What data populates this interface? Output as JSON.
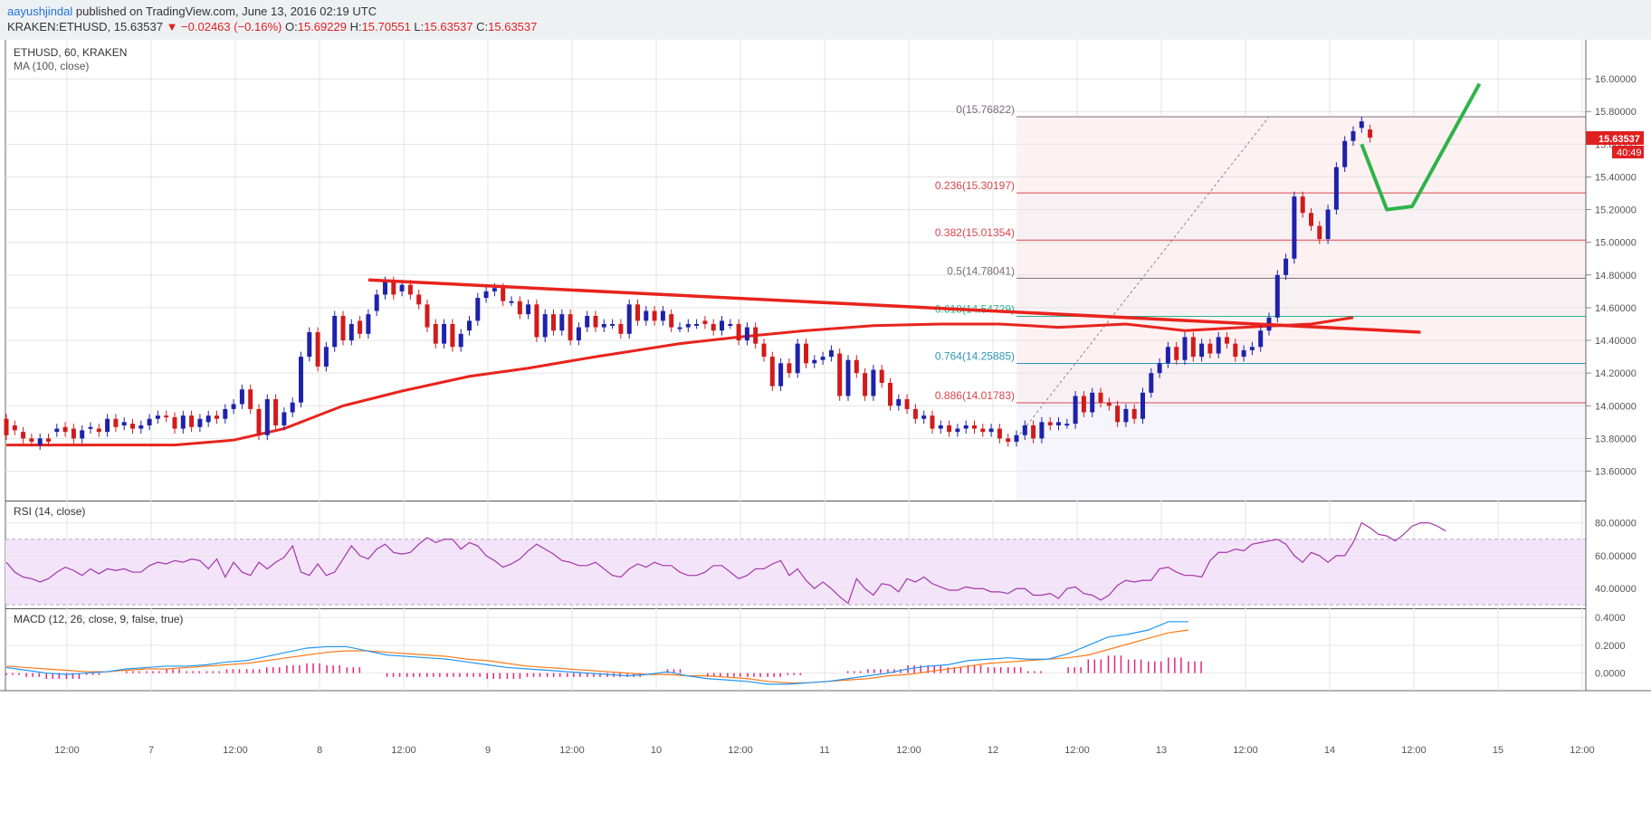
{
  "header": {
    "user": "aayushjindal",
    "published": " published on TradingView.com, June 13, 2016 02:19 UTC",
    "symbol": "KRAKEN:ETHUSD, 15.63537 ",
    "change": "▼ −0.02463 (−0.16%)",
    "o_label": " O:",
    "o_val": "15.69229",
    "h_label": " H:",
    "h_val": "15.70551",
    "l_label": " L:",
    "l_val": "15.63537",
    "c_label": " C:",
    "c_val": "15.63537"
  },
  "colors": {
    "up": "#1e22aa",
    "down": "#d21b1b",
    "ma": "#e8231d",
    "trend": "#e8231d",
    "forecast": "#2db34a",
    "rsi": "#a335a8",
    "rsi_band": "#f3e4fa",
    "macd": "#2196f3",
    "signal": "#ff7a1a",
    "hist": "#e2257a"
  },
  "chart_data": [
    {
      "type": "candlestick",
      "title": "ETHUSD, 60, KRAKEN",
      "indicator": "MA (100, close)",
      "ylim": [
        13.42,
        16.2
      ],
      "yticks": [
        13.6,
        13.8,
        14.0,
        14.2,
        14.4,
        14.6,
        14.8,
        15.0,
        15.2,
        15.4,
        15.6,
        15.8,
        16.0
      ],
      "xlabels": [
        "12:00",
        "7",
        "12:00",
        "8",
        "12:00",
        "9",
        "12:00",
        "10",
        "12:00",
        "11",
        "12:00",
        "12",
        "12:00",
        "13",
        "12:00",
        "14",
        "12:00",
        "15",
        "12:00"
      ],
      "last_price": "15.63537",
      "countdown": "40:49",
      "candles": [
        [
          13.92,
          13.82
        ],
        [
          13.88,
          13.85
        ],
        [
          13.84,
          13.8
        ],
        [
          13.8,
          13.78
        ],
        [
          13.76,
          13.8
        ],
        [
          13.8,
          13.78
        ],
        [
          13.84,
          13.86
        ],
        [
          13.87,
          13.84
        ],
        [
          13.86,
          13.8
        ],
        [
          13.8,
          13.85
        ],
        [
          13.86,
          13.87
        ],
        [
          13.86,
          13.84
        ],
        [
          13.84,
          13.92
        ],
        [
          13.92,
          13.87
        ],
        [
          13.88,
          13.9
        ],
        [
          13.89,
          13.86
        ],
        [
          13.86,
          13.88
        ],
        [
          13.88,
          13.92
        ],
        [
          13.92,
          13.94
        ],
        [
          13.94,
          13.93
        ],
        [
          13.93,
          13.86
        ],
        [
          13.86,
          13.94
        ],
        [
          13.94,
          13.87
        ],
        [
          13.87,
          13.92
        ],
        [
          13.9,
          13.94
        ],
        [
          13.94,
          13.92
        ],
        [
          13.92,
          13.98
        ],
        [
          13.98,
          14.01
        ],
        [
          14.01,
          14.1
        ],
        [
          14.1,
          13.98
        ],
        [
          13.98,
          13.82
        ],
        [
          13.82,
          14.04
        ],
        [
          14.04,
          13.88
        ],
        [
          13.88,
          13.96
        ],
        [
          13.96,
          14.02
        ],
        [
          14.02,
          14.3
        ],
        [
          14.3,
          14.45
        ],
        [
          14.45,
          14.24
        ],
        [
          14.24,
          14.36
        ],
        [
          14.36,
          14.55
        ],
        [
          14.55,
          14.4
        ],
        [
          14.4,
          14.5
        ],
        [
          14.52,
          14.44
        ],
        [
          14.44,
          14.56
        ],
        [
          14.58,
          14.68
        ],
        [
          14.68,
          14.76
        ],
        [
          14.76,
          14.68
        ],
        [
          14.7,
          14.74
        ],
        [
          14.74,
          14.68
        ],
        [
          14.68,
          14.62
        ],
        [
          14.62,
          14.48
        ],
        [
          14.5,
          14.38
        ],
        [
          14.38,
          14.5
        ],
        [
          14.5,
          14.36
        ],
        [
          14.36,
          14.44
        ],
        [
          14.46,
          14.52
        ],
        [
          14.52,
          14.66
        ],
        [
          14.66,
          14.7
        ],
        [
          14.7,
          14.72
        ],
        [
          14.72,
          14.64
        ],
        [
          14.64,
          14.64
        ],
        [
          14.64,
          14.56
        ],
        [
          14.56,
          14.62
        ],
        [
          14.62,
          14.42
        ],
        [
          14.42,
          14.56
        ],
        [
          14.56,
          14.46
        ],
        [
          14.46,
          14.56
        ],
        [
          14.56,
          14.4
        ],
        [
          14.4,
          14.48
        ],
        [
          14.48,
          14.55
        ],
        [
          14.55,
          14.48
        ],
        [
          14.48,
          14.5
        ],
        [
          14.5,
          14.5
        ],
        [
          14.5,
          14.44
        ],
        [
          14.44,
          14.62
        ],
        [
          14.62,
          14.52
        ],
        [
          14.52,
          14.58
        ],
        [
          14.58,
          14.52
        ],
        [
          14.52,
          14.58
        ],
        [
          14.56,
          14.48
        ],
        [
          14.48,
          14.48
        ],
        [
          14.48,
          14.5
        ],
        [
          14.5,
          14.5
        ],
        [
          14.52,
          14.5
        ],
        [
          14.5,
          14.46
        ],
        [
          14.46,
          14.52
        ],
        [
          14.5,
          14.5
        ],
        [
          14.5,
          14.4
        ],
        [
          14.4,
          14.48
        ],
        [
          14.48,
          14.38
        ],
        [
          14.38,
          14.3
        ],
        [
          14.3,
          14.12
        ],
        [
          14.12,
          14.26
        ],
        [
          14.26,
          14.2
        ],
        [
          14.2,
          14.38
        ],
        [
          14.38,
          14.26
        ],
        [
          14.26,
          14.28
        ],
        [
          14.28,
          14.3
        ],
        [
          14.3,
          14.34
        ],
        [
          14.32,
          14.06
        ],
        [
          14.06,
          14.28
        ],
        [
          14.28,
          14.2
        ],
        [
          14.2,
          14.06
        ],
        [
          14.06,
          14.22
        ],
        [
          14.22,
          14.14
        ],
        [
          14.14,
          14.0
        ],
        [
          14.0,
          14.04
        ],
        [
          14.04,
          13.98
        ],
        [
          13.98,
          13.92
        ],
        [
          13.92,
          13.94
        ],
        [
          13.94,
          13.86
        ],
        [
          13.86,
          13.88
        ],
        [
          13.88,
          13.84
        ],
        [
          13.84,
          13.86
        ],
        [
          13.86,
          13.88
        ],
        [
          13.88,
          13.86
        ],
        [
          13.86,
          13.84
        ],
        [
          13.84,
          13.86
        ],
        [
          13.86,
          13.8
        ],
        [
          13.8,
          13.78
        ],
        [
          13.78,
          13.82
        ],
        [
          13.82,
          13.88
        ],
        [
          13.88,
          13.8
        ],
        [
          13.8,
          13.9
        ],
        [
          13.9,
          13.88
        ],
        [
          13.88,
          13.9
        ],
        [
          13.89,
          13.89
        ],
        [
          13.89,
          14.06
        ],
        [
          14.06,
          13.96
        ],
        [
          13.96,
          14.08
        ],
        [
          14.08,
          14.02
        ],
        [
          14.02,
          14.0
        ],
        [
          14.0,
          13.9
        ],
        [
          13.9,
          13.98
        ],
        [
          13.98,
          13.92
        ],
        [
          13.92,
          14.08
        ],
        [
          14.08,
          14.2
        ],
        [
          14.2,
          14.26
        ],
        [
          14.26,
          14.36
        ],
        [
          14.36,
          14.28
        ],
        [
          14.28,
          14.42
        ],
        [
          14.42,
          14.3
        ],
        [
          14.3,
          14.38
        ],
        [
          14.38,
          14.32
        ],
        [
          14.32,
          14.42
        ],
        [
          14.42,
          14.38
        ],
        [
          14.38,
          14.3
        ],
        [
          14.3,
          14.34
        ],
        [
          14.34,
          14.36
        ],
        [
          14.36,
          14.46
        ],
        [
          14.46,
          14.54
        ],
        [
          14.54,
          14.8
        ],
        [
          14.8,
          14.9
        ],
        [
          14.9,
          15.28
        ],
        [
          15.28,
          15.18
        ],
        [
          15.18,
          15.1
        ],
        [
          15.1,
          15.02
        ],
        [
          15.02,
          15.2
        ],
        [
          15.2,
          15.46
        ],
        [
          15.46,
          15.62
        ],
        [
          15.62,
          15.68
        ],
        [
          15.7,
          15.74
        ],
        [
          15.69,
          15.64
        ]
      ],
      "ma100": [
        [
          0,
          13.76
        ],
        [
          10,
          13.76
        ],
        [
          20,
          13.76
        ],
        [
          27,
          13.79
        ],
        [
          33,
          13.86
        ],
        [
          40,
          14.0
        ],
        [
          47,
          14.09
        ],
        [
          55,
          14.18
        ],
        [
          62,
          14.23
        ],
        [
          70,
          14.3
        ],
        [
          80,
          14.38
        ],
        [
          87,
          14.42
        ],
        [
          95,
          14.46
        ],
        [
          103,
          14.49
        ],
        [
          111,
          14.5
        ],
        [
          118,
          14.5
        ],
        [
          125,
          14.48
        ],
        [
          133,
          14.5
        ],
        [
          140,
          14.46
        ],
        [
          147,
          14.48
        ],
        [
          155,
          14.5
        ],
        [
          160,
          14.54
        ]
      ],
      "trendline": [
        [
          43,
          14.77
        ],
        [
          168,
          14.45
        ]
      ],
      "fib_levels": [
        {
          "label": "0(15.76822)",
          "value": 15.76822,
          "color": "#7a6a7a"
        },
        {
          "label": "0.236(15.30197)",
          "value": 15.30197,
          "color": "#d9434b"
        },
        {
          "label": "0.382(15.01354)",
          "value": 15.01354,
          "color": "#d9434b"
        },
        {
          "label": "0.5(14.78041)",
          "value": 14.78041,
          "color": "#7a6a7a"
        },
        {
          "label": "0.618(14.54729)",
          "value": 14.54729,
          "color": "#27b590"
        },
        {
          "label": "0.764(14.25885)",
          "value": 14.25885,
          "color": "#3094b9"
        },
        {
          "label": "0.886(14.01783)",
          "value": 14.01783,
          "color": "#d9434b"
        }
      ],
      "forecast": [
        [
          161,
          15.6
        ],
        [
          164,
          15.2
        ],
        [
          167,
          15.22
        ],
        [
          175,
          15.97
        ]
      ]
    },
    {
      "type": "line",
      "title": "RSI (14, close)",
      "ylim": [
        28,
        93
      ],
      "yticks": [
        40.0,
        60.0,
        80.0
      ],
      "bands": [
        70,
        30
      ],
      "values": [
        56,
        50,
        47,
        46,
        44,
        46,
        50,
        53,
        51,
        48,
        52,
        49,
        52,
        51,
        52,
        50,
        50,
        54,
        56,
        55,
        57,
        56,
        58,
        57,
        52,
        58,
        47,
        56,
        50,
        48,
        56,
        52,
        56,
        59,
        66,
        50,
        48,
        55,
        48,
        50,
        58,
        66,
        60,
        58,
        64,
        67,
        62,
        61,
        62,
        67,
        71,
        68,
        70,
        70,
        64,
        68,
        66,
        60,
        57,
        53,
        55,
        58,
        63,
        67,
        64,
        61,
        57,
        56,
        54,
        54,
        56,
        52,
        48,
        47,
        52,
        55,
        53,
        56,
        54,
        54,
        50,
        48,
        48,
        50,
        54,
        54,
        50,
        46,
        48,
        52,
        52,
        55,
        57,
        48,
        52,
        45,
        40,
        44,
        40,
        35,
        31,
        46,
        40,
        36,
        43,
        42,
        38,
        46,
        44,
        47,
        43,
        41,
        39,
        39,
        41,
        40,
        40,
        38,
        38,
        37,
        40,
        40,
        36,
        36,
        37,
        34,
        40,
        41,
        37,
        36,
        33,
        36,
        42,
        45,
        44,
        45,
        45,
        52,
        53,
        50,
        48,
        48,
        47,
        57,
        62,
        62,
        64,
        63,
        67,
        68,
        69,
        70,
        67,
        60,
        56,
        62,
        60,
        56,
        60,
        60,
        68,
        80,
        77,
        73,
        72,
        69,
        73,
        78,
        80,
        80,
        78,
        75
      ]
    },
    {
      "type": "line",
      "title": "MACD (12, 26, close, 9, false, true)",
      "ylim": [
        -0.12,
        0.46
      ],
      "yticks": [
        0.0,
        0.2,
        0.4
      ],
      "series": [
        {
          "name": "MACD",
          "values": [
            0.04,
            0.02,
            0.0,
            -0.01,
            0.0,
            0.01,
            0.03,
            0.04,
            0.05,
            0.05,
            0.06,
            0.08,
            0.09,
            0.12,
            0.15,
            0.18,
            0.19,
            0.19,
            0.16,
            0.13,
            0.12,
            0.11,
            0.1,
            0.08,
            0.06,
            0.04,
            0.03,
            0.02,
            0.01,
            0.0,
            -0.01,
            -0.02,
            -0.01,
            0.01,
            -0.02,
            -0.04,
            -0.05,
            -0.06,
            -0.08,
            -0.08,
            -0.07,
            -0.06,
            -0.04,
            -0.02,
            0.0,
            0.03,
            0.05,
            0.06,
            0.09,
            0.1,
            0.11,
            0.1,
            0.1,
            0.14,
            0.2,
            0.26,
            0.28,
            0.31,
            0.37,
            0.37
          ]
        },
        {
          "name": "Signal",
          "values": [
            0.05,
            0.04,
            0.03,
            0.02,
            0.01,
            0.01,
            0.02,
            0.03,
            0.03,
            0.04,
            0.05,
            0.06,
            0.07,
            0.09,
            0.11,
            0.13,
            0.15,
            0.16,
            0.16,
            0.15,
            0.14,
            0.13,
            0.12,
            0.1,
            0.09,
            0.07,
            0.05,
            0.04,
            0.03,
            0.02,
            0.01,
            0.0,
            -0.01,
            -0.01,
            -0.02,
            -0.02,
            -0.03,
            -0.04,
            -0.06,
            -0.07,
            -0.07,
            -0.06,
            -0.05,
            -0.04,
            -0.02,
            -0.01,
            0.01,
            0.03,
            0.05,
            0.07,
            0.08,
            0.09,
            0.1,
            0.11,
            0.13,
            0.17,
            0.21,
            0.25,
            0.29,
            0.31
          ]
        }
      ]
    }
  ]
}
